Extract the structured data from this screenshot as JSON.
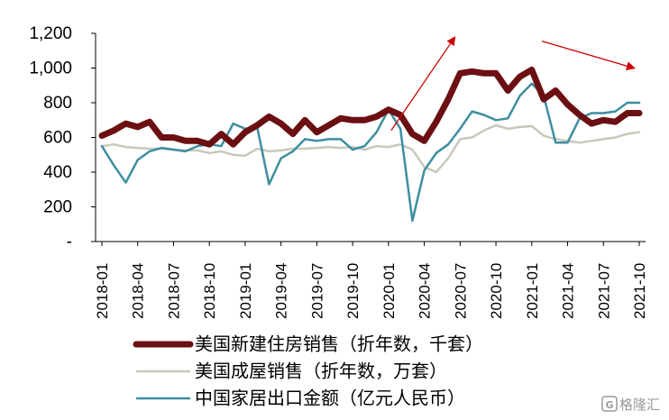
{
  "chart_data": {
    "type": "line",
    "y_ticks": [
      "1,200",
      "1,000",
      "800",
      "600",
      "400",
      "200",
      "-"
    ],
    "y_tick_values": [
      1200,
      1000,
      800,
      600,
      400,
      200,
      0
    ],
    "ylim": [
      0,
      1200
    ],
    "x": [
      "2018-01",
      "2018-02",
      "2018-03",
      "2018-04",
      "2018-05",
      "2018-06",
      "2018-07",
      "2018-08",
      "2018-09",
      "2018-10",
      "2018-11",
      "2018-12",
      "2019-01",
      "2019-02",
      "2019-03",
      "2019-04",
      "2019-05",
      "2019-06",
      "2019-07",
      "2019-08",
      "2019-09",
      "2019-10",
      "2019-11",
      "2019-12",
      "2020-01",
      "2020-02",
      "2020-03",
      "2020-04",
      "2020-05",
      "2020-06",
      "2020-07",
      "2020-08",
      "2020-09",
      "2020-10",
      "2020-11",
      "2020-12",
      "2021-01",
      "2021-02",
      "2021-03",
      "2021-04",
      "2021-05",
      "2021-06",
      "2021-07",
      "2021-08",
      "2021-09",
      "2021-10"
    ],
    "x_tick_labels": [
      "2018-01",
      "2018-04",
      "2018-07",
      "2018-10",
      "2019-01",
      "2019-04",
      "2019-07",
      "2019-10",
      "2020-01",
      "2020-04",
      "2020-07",
      "2020-10",
      "2021-01",
      "2021-04",
      "2021-07",
      "2021-10"
    ],
    "grid": false,
    "legend_position": "bottom",
    "series": [
      {
        "name": "美国新建住房销售（折年数，千套）",
        "color": "#6b0f12",
        "values": [
          610,
          640,
          680,
          660,
          690,
          600,
          600,
          580,
          580,
          560,
          620,
          560,
          630,
          670,
          720,
          680,
          620,
          700,
          630,
          670,
          710,
          700,
          700,
          720,
          760,
          730,
          620,
          580,
          690,
          820,
          970,
          980,
          970,
          970,
          870,
          950,
          990,
          820,
          870,
          790,
          730,
          680,
          700,
          690,
          740,
          740
        ]
      },
      {
        "name": "美国成屋销售（折年数，万套）",
        "color": "#c8c8bc",
        "values": [
          550,
          560,
          545,
          540,
          535,
          535,
          530,
          525,
          525,
          510,
          520,
          500,
          495,
          535,
          520,
          525,
          535,
          535,
          540,
          545,
          540,
          545,
          530,
          550,
          545,
          560,
          530,
          430,
          400,
          480,
          590,
          600,
          640,
          670,
          650,
          660,
          665,
          610,
          590,
          580,
          570,
          580,
          590,
          600,
          620,
          630
        ]
      },
      {
        "name": "中国家居出口金额（亿元人民币）",
        "color": "#3e8ea0",
        "values": [
          550,
          440,
          340,
          470,
          520,
          540,
          530,
          520,
          550,
          560,
          550,
          680,
          650,
          660,
          330,
          480,
          520,
          590,
          580,
          590,
          590,
          530,
          550,
          630,
          760,
          650,
          120,
          410,
          510,
          560,
          650,
          750,
          730,
          700,
          710,
          840,
          910,
          840,
          570,
          570,
          710,
          740,
          740,
          750,
          800,
          800
        ]
      }
    ],
    "annotations": [
      {
        "type": "arrow",
        "direction": "up",
        "color": "#cc0000"
      },
      {
        "type": "arrow",
        "direction": "down-right",
        "color": "#cc0000"
      }
    ]
  },
  "watermark": {
    "icon": "gelonghui-logo-icon",
    "text": "格隆汇"
  }
}
